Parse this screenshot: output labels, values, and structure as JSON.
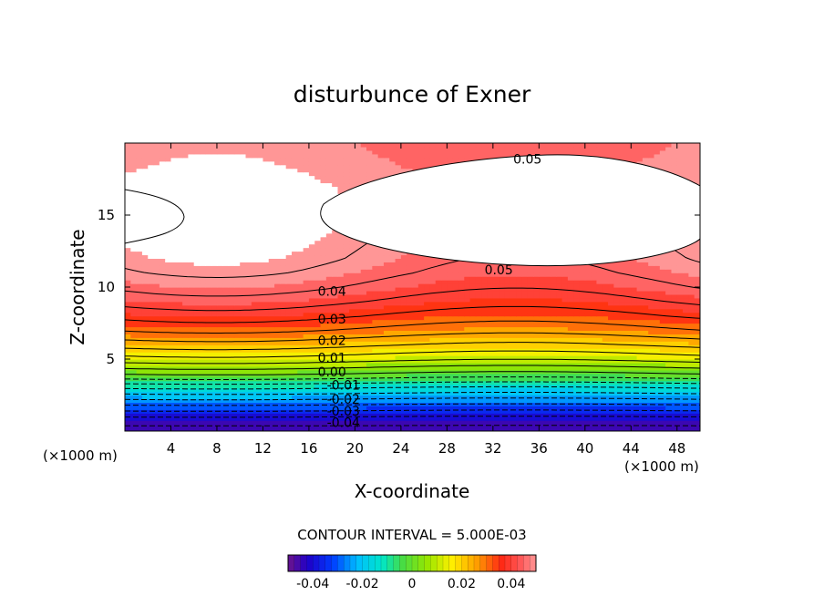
{
  "chart_data": {
    "type": "heatmap",
    "title": "disturbunce of Exner",
    "xlabel": "X-coordinate",
    "ylabel": "Z-coordinate",
    "x_unit": "(×1000 m)",
    "y_unit": "(×1000 m)",
    "xlim": [
      0,
      50
    ],
    "ylim": [
      0,
      20
    ],
    "x_ticks": [
      4,
      8,
      12,
      16,
      20,
      24,
      28,
      32,
      36,
      40,
      44,
      48
    ],
    "y_ticks": [
      5,
      10,
      15
    ],
    "contour_interval_label": "CONTOUR INTERVAL = 5.000E-03",
    "contour_interval": 0.005,
    "contour_labels": [
      {
        "text": "0.05",
        "x": 35,
        "y": 18.9
      },
      {
        "text": "0.05",
        "x": 32.5,
        "y": 11.2
      },
      {
        "text": "0.04",
        "x": 18,
        "y": 9.7
      },
      {
        "text": "0.03",
        "x": 18,
        "y": 7.8
      },
      {
        "text": "0.02",
        "x": 18,
        "y": 6.3
      },
      {
        "text": "0.01",
        "x": 18,
        "y": 5.1
      },
      {
        "text": "0.00",
        "x": 18,
        "y": 4.1
      },
      {
        "text": "-0.01",
        "x": 19,
        "y": 3.2
      },
      {
        "text": "-0.02",
        "x": 19,
        "y": 2.2
      },
      {
        "text": "-0.03",
        "x": 19,
        "y": 1.4
      },
      {
        "text": "-0.04",
        "x": 19,
        "y": 0.6
      }
    ],
    "colorbar": {
      "min": -0.05,
      "max": 0.05,
      "tick_labels": [
        "-0.04",
        "-0.02",
        "0",
        "0.02",
        "0.04"
      ],
      "tick_values": [
        -0.04,
        -0.02,
        0,
        0.02,
        0.04
      ]
    },
    "levels": [
      {
        "z": 0.0,
        "v": -0.048
      },
      {
        "z": 1.0,
        "v": -0.04
      },
      {
        "z": 2.0,
        "v": -0.028
      },
      {
        "z": 3.0,
        "v": -0.015
      },
      {
        "z": 4.0,
        "v": 0.0
      },
      {
        "z": 5.0,
        "v": 0.012
      },
      {
        "z": 6.0,
        "v": 0.021
      },
      {
        "z": 7.0,
        "v": 0.029
      },
      {
        "z": 8.0,
        "v": 0.035
      },
      {
        "z": 9.0,
        "v": 0.04
      },
      {
        "z": 10.0,
        "v": 0.044
      },
      {
        "z": 11.0,
        "v": 0.047
      },
      {
        "z": 12.0,
        "v": 0.049
      },
      {
        "z": 15.0,
        "v": 0.052
      },
      {
        "z": 17.0,
        "v": 0.051
      },
      {
        "z": 20.0,
        "v": 0.047
      }
    ],
    "colors": {
      "high_region": "#ffffff",
      "contour_line": "#000000"
    }
  }
}
